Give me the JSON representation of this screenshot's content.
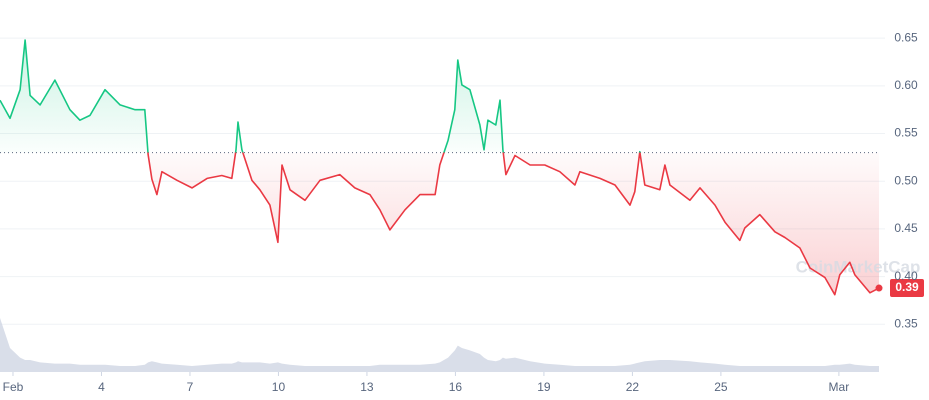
{
  "chart_data": {
    "type": "line",
    "watermark": "CoinMarketCap",
    "baseline": 0.53,
    "up_color": "#16c784",
    "down_color": "#ea3943",
    "volume_color": "#cfd6e4",
    "last_label": "0.39",
    "xlim": [
      -0.44,
      29.36
    ],
    "xticks": [
      {
        "value": 0,
        "label": "Feb"
      },
      {
        "value": 3,
        "label": "4"
      },
      {
        "value": 6,
        "label": "7"
      },
      {
        "value": 9,
        "label": "10"
      },
      {
        "value": 12,
        "label": "13"
      },
      {
        "value": 15,
        "label": "16"
      },
      {
        "value": 18,
        "label": "19"
      },
      {
        "value": 21,
        "label": "22"
      },
      {
        "value": 24,
        "label": "25"
      },
      {
        "value": 28,
        "label": "Mar"
      }
    ],
    "ylim": [
      0.3,
      0.69
    ],
    "yticks": [
      {
        "value": 0.35,
        "label": "0.35"
      },
      {
        "value": 0.4,
        "label": "0.40"
      },
      {
        "value": 0.45,
        "label": "0.45"
      },
      {
        "value": 0.5,
        "label": "0.50"
      },
      {
        "value": 0.55,
        "label": "0.55"
      },
      {
        "value": 0.6,
        "label": "0.60"
      },
      {
        "value": 0.65,
        "label": "0.65"
      }
    ],
    "grid": true,
    "x": [
      -0.44,
      -0.1,
      0.24,
      0.41,
      0.58,
      0.92,
      1.42,
      1.93,
      2.27,
      2.61,
      3.12,
      3.63,
      4.14,
      4.47,
      4.58,
      4.71,
      4.88,
      5.05,
      5.56,
      6.07,
      6.58,
      7.08,
      7.42,
      7.56,
      7.63,
      7.76,
      8.1,
      8.37,
      8.71,
      8.98,
      9.12,
      9.39,
      9.9,
      10.41,
      11.08,
      11.59,
      12.1,
      12.44,
      12.78,
      13.29,
      13.8,
      14.31,
      14.47,
      14.75,
      14.98,
      15.08,
      15.22,
      15.49,
      15.83,
      15.97,
      16.1,
      16.37,
      16.51,
      16.61,
      16.71,
      17.02,
      17.53,
      18.03,
      18.54,
      19.05,
      19.22,
      19.9,
      20.41,
      20.92,
      21.08,
      21.25,
      21.42,
      21.93,
      22.1,
      22.27,
      22.95,
      23.29,
      23.8,
      24.14,
      24.64,
      24.81,
      25.32,
      25.83,
      26.17,
      26.68,
      27.02,
      27.53,
      27.86,
      28.03,
      28.37,
      28.54,
      29.05,
      29.36
    ],
    "values": [
      0.585,
      0.566,
      0.596,
      0.648,
      0.59,
      0.58,
      0.606,
      0.575,
      0.564,
      0.569,
      0.596,
      0.58,
      0.575,
      0.575,
      0.528,
      0.502,
      0.486,
      0.51,
      0.501,
      0.493,
      0.503,
      0.506,
      0.503,
      0.533,
      0.562,
      0.533,
      0.501,
      0.491,
      0.475,
      0.436,
      0.517,
      0.491,
      0.48,
      0.501,
      0.507,
      0.493,
      0.486,
      0.47,
      0.449,
      0.47,
      0.486,
      0.486,
      0.517,
      0.543,
      0.575,
      0.627,
      0.601,
      0.596,
      0.559,
      0.533,
      0.564,
      0.559,
      0.585,
      0.533,
      0.507,
      0.527,
      0.517,
      0.517,
      0.51,
      0.496,
      0.51,
      0.503,
      0.496,
      0.475,
      0.489,
      0.531,
      0.496,
      0.491,
      0.517,
      0.496,
      0.48,
      0.493,
      0.475,
      0.457,
      0.438,
      0.451,
      0.465,
      0.447,
      0.441,
      0.43,
      0.409,
      0.399,
      0.381,
      0.402,
      0.415,
      0.402,
      0.383,
      0.388
    ],
    "vlim": [
      0,
      50
    ],
    "volume": [
      45,
      20,
      12,
      10,
      10,
      8,
      7,
      7,
      6,
      6,
      6,
      5,
      5,
      6,
      8,
      9,
      8,
      7,
      6,
      5,
      6,
      7,
      7,
      8,
      9,
      8,
      8,
      8,
      7,
      8,
      7,
      6,
      5,
      5,
      5,
      5,
      5,
      6,
      6,
      6,
      6,
      7,
      8,
      12,
      18,
      22,
      20,
      18,
      15,
      12,
      10,
      9,
      10,
      12,
      11,
      12,
      9,
      7,
      6,
      5,
      5,
      5,
      5,
      6,
      7,
      8,
      9,
      10,
      10,
      10,
      9,
      8,
      7,
      6,
      5,
      5,
      5,
      5,
      5,
      5,
      5,
      5,
      6,
      6,
      7,
      6,
      5,
      5
    ]
  }
}
